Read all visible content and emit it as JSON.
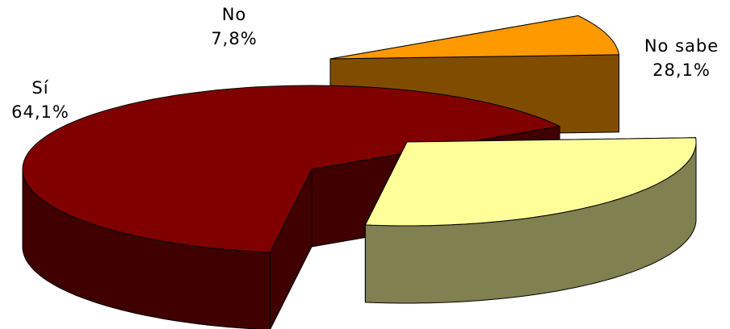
{
  "chart_data": {
    "type": "pie",
    "title": "",
    "three_d": true,
    "exploded": true,
    "slices": [
      {
        "label": "No sabe",
        "value": 28.1,
        "value_label": "28,1%",
        "color_top": "#ffff99",
        "color_side": "#808050"
      },
      {
        "label": "Sí",
        "value": 64.1,
        "value_label": "64,1%",
        "color_top": "#800000",
        "color_side": "#400000"
      },
      {
        "label": "No",
        "value": 7.8,
        "value_label": "7,8%",
        "color_top": "#ff9900",
        "color_side": "#804d00"
      }
    ]
  }
}
